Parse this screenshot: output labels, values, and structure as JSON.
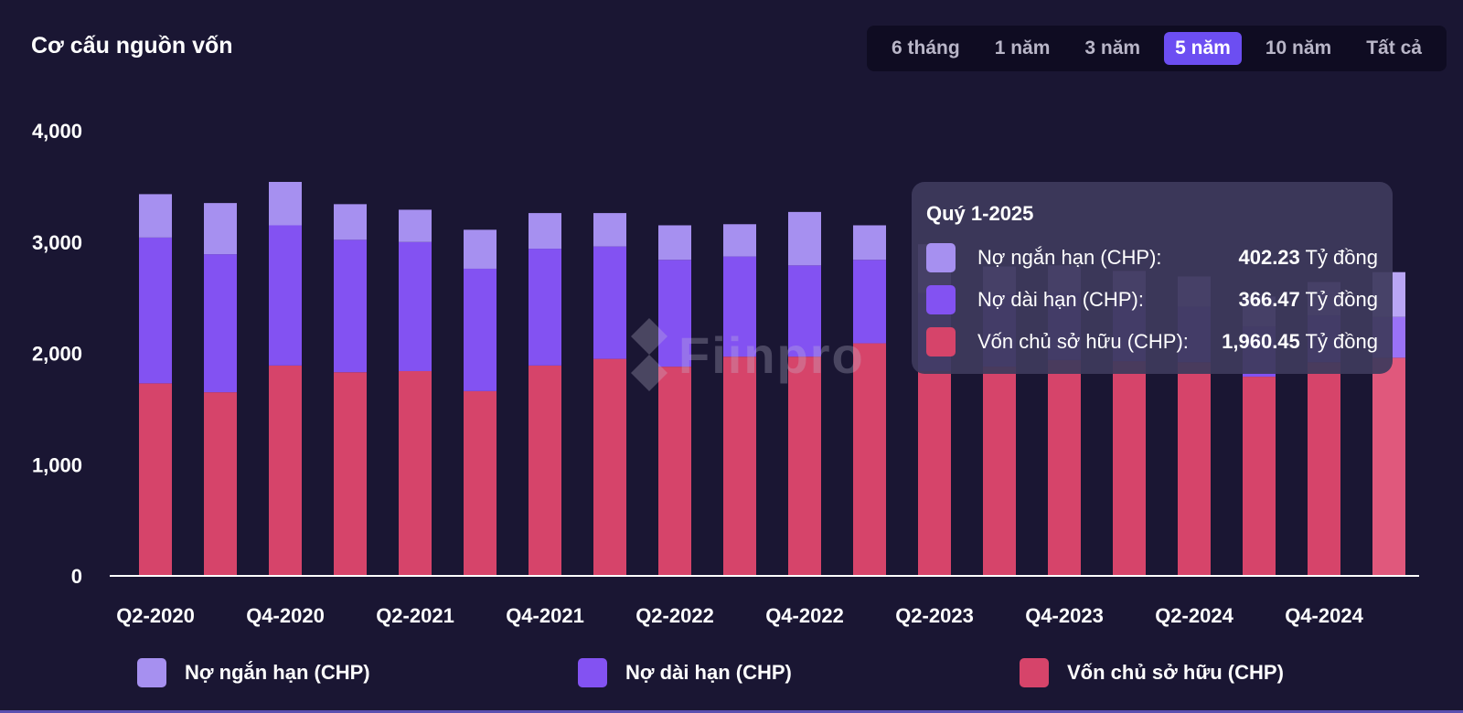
{
  "header": {
    "title": "Cơ cấu nguồn vốn",
    "range_tabs": [
      "6 tháng",
      "1 năm",
      "3 năm",
      "5 năm",
      "10 năm",
      "Tất cả"
    ],
    "active_tab": "5 năm"
  },
  "watermark": {
    "text": "Fiinpro"
  },
  "tooltip": {
    "title": "Quý 1-2025",
    "rows": [
      {
        "label": "Nợ ngắn hạn (CHP):",
        "value": "402.23",
        "unit": "Tỷ đồng",
        "color": "#a690f0"
      },
      {
        "label": "Nợ dài hạn (CHP):",
        "value": "366.47",
        "unit": "Tỷ đồng",
        "color": "#8352f2"
      },
      {
        "label": "Vốn chủ sở hữu (CHP):",
        "value": "1,960.45",
        "unit": "Tỷ đồng",
        "color": "#d6446a"
      }
    ]
  },
  "chart_data": {
    "type": "bar",
    "stacked": true,
    "categories": [
      "Q2-2020",
      "Q3-2020",
      "Q4-2020",
      "Q1-2021",
      "Q2-2021",
      "Q3-2021",
      "Q4-2021",
      "Q1-2022",
      "Q2-2022",
      "Q3-2022",
      "Q4-2022",
      "Q1-2023",
      "Q2-2023",
      "Q3-2023",
      "Q4-2023",
      "Q1-2024",
      "Q2-2024",
      "Q3-2024",
      "Q4-2024",
      "Q1-2025"
    ],
    "x_tick_labels": [
      "Q2-2020",
      "Q4-2020",
      "Q2-2021",
      "Q4-2021",
      "Q2-2022",
      "Q4-2022",
      "Q2-2023",
      "Q4-2023",
      "Q2-2024",
      "Q4-2024"
    ],
    "ylim": [
      0,
      4000
    ],
    "y_ticks": [
      0,
      1000,
      2000,
      3000,
      4000
    ],
    "y_tick_labels": [
      "0",
      "1,000",
      "2,000",
      "3,000",
      "4,000"
    ],
    "legend_position": "bottom",
    "series": [
      {
        "name": "Vốn chủ sở hữu (CHP)",
        "color": "#d6446a",
        "values": [
          1730,
          1650,
          1890,
          1830,
          1840,
          1660,
          1890,
          1950,
          1880,
          1970,
          1970,
          2090,
          1840,
          1880,
          1940,
          1930,
          1920,
          1790,
          1920,
          1960.45
        ]
      },
      {
        "name": "Nợ dài hạn (CHP)",
        "color": "#8352f2",
        "values": [
          1310,
          1240,
          1260,
          1190,
          1160,
          1100,
          1050,
          1010,
          960,
          900,
          820,
          750,
          700,
          650,
          600,
          550,
          500,
          450,
          420,
          366.47
        ]
      },
      {
        "name": "Nợ ngắn hạn (CHP)",
        "color": "#a690f0",
        "values": [
          390,
          460,
          390,
          320,
          290,
          350,
          320,
          300,
          310,
          290,
          480,
          310,
          440,
          250,
          250,
          260,
          270,
          270,
          300,
          402.23
        ]
      }
    ],
    "highlight_index": 19
  }
}
